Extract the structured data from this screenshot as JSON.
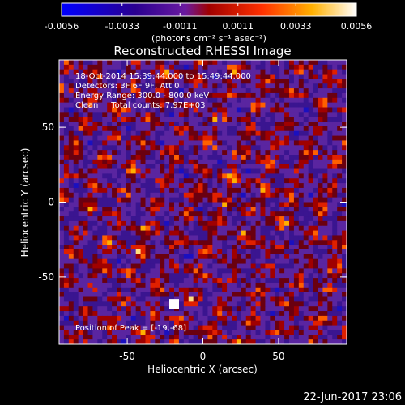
{
  "colorbar": {
    "tick_labels": [
      "-0.0056",
      "-0.0033",
      "-0.0011",
      "0.0011",
      "0.0033",
      "0.0056"
    ],
    "tick_values": [
      -0.0056,
      -0.0033,
      -0.0011,
      0.0011,
      0.0033,
      0.0056
    ],
    "range": [
      -0.0056,
      0.0056
    ],
    "units": "(photons cm⁻² s⁻¹ asec⁻²)",
    "colormap": [
      "#0000ff",
      "#300070",
      "#5a1a96",
      "#b00000",
      "#ff3000",
      "#ffaa00",
      "#ffffff"
    ]
  },
  "chart_data": {
    "type": "heatmap",
    "title": "Reconstructed RHESSI Image",
    "xlabel": "Heliocentric X (arcsec)",
    "ylabel": "Heliocentric Y (arcsec)",
    "xlim": [
      -95,
      95
    ],
    "ylim": [
      -95,
      95
    ],
    "xticks": [
      -50,
      0,
      50
    ],
    "xtick_labels": [
      "-50",
      "0",
      "50"
    ],
    "yticks": [
      -50,
      0,
      50
    ],
    "ytick_labels": [
      "-50",
      "0",
      "50"
    ],
    "grid": false,
    "peak": {
      "x": -19,
      "y": -68
    },
    "annotations": {
      "time": "18-Oct-2014 15:39:44.000 to 15:49:44.000",
      "detectors": "Detectors: 3F 6F 9F, Att 0",
      "energy": "Energy Range: 300.0 - 800.0 keV",
      "method": "Clean     Total counts: 7.97E+03",
      "peak": "Position of Peak = [-19,-68]"
    }
  },
  "footer": {
    "date": "22-Jun-2017 23:06"
  }
}
